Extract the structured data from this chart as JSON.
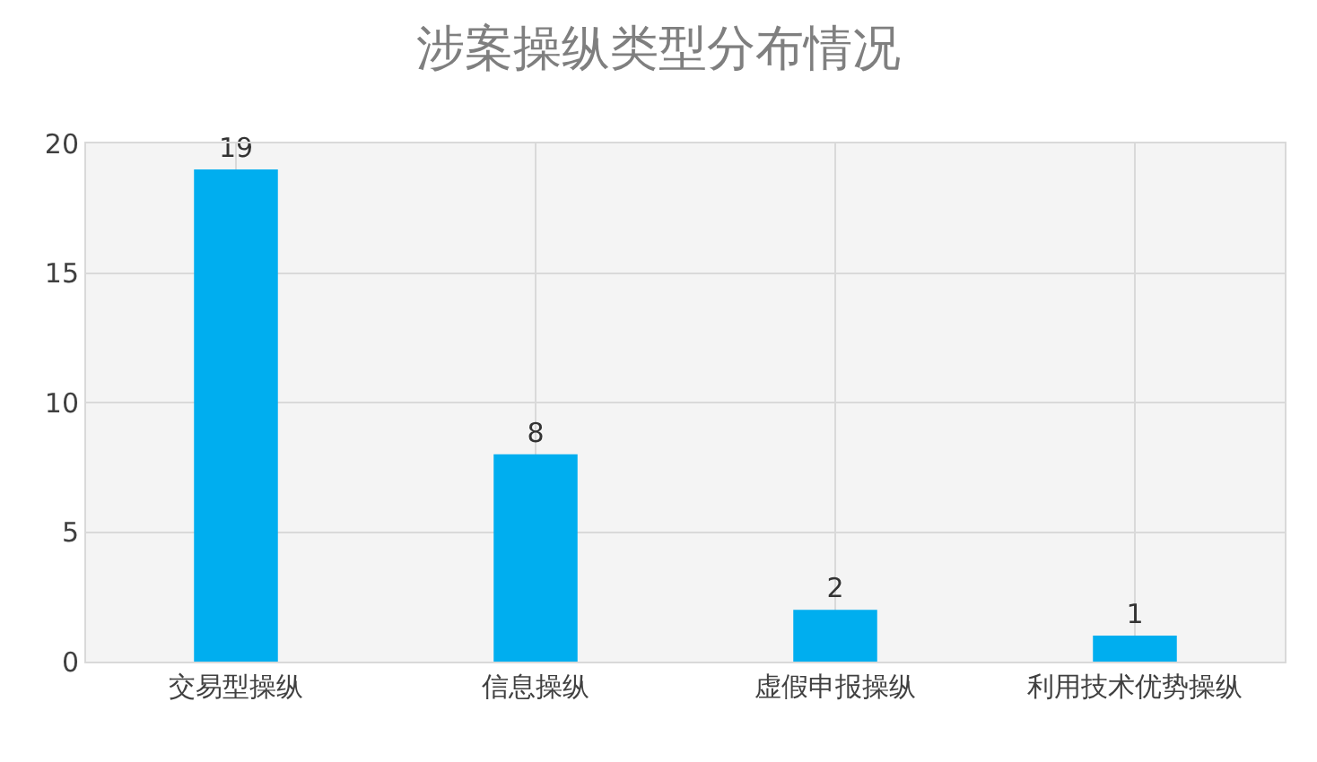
{
  "chart_data": {
    "type": "bar",
    "title": "涉案操纵类型分布情况",
    "categories": [
      "交易型操纵",
      "信息操纵",
      "虚假申报操纵",
      "利用技术优势操纵"
    ],
    "values": [
      19,
      8,
      2,
      1
    ],
    "color": "#00aeef",
    "ylim": [
      0,
      20
    ],
    "yticks": [
      0,
      5,
      10,
      15,
      20
    ],
    "grid": true,
    "data_labels": true
  }
}
